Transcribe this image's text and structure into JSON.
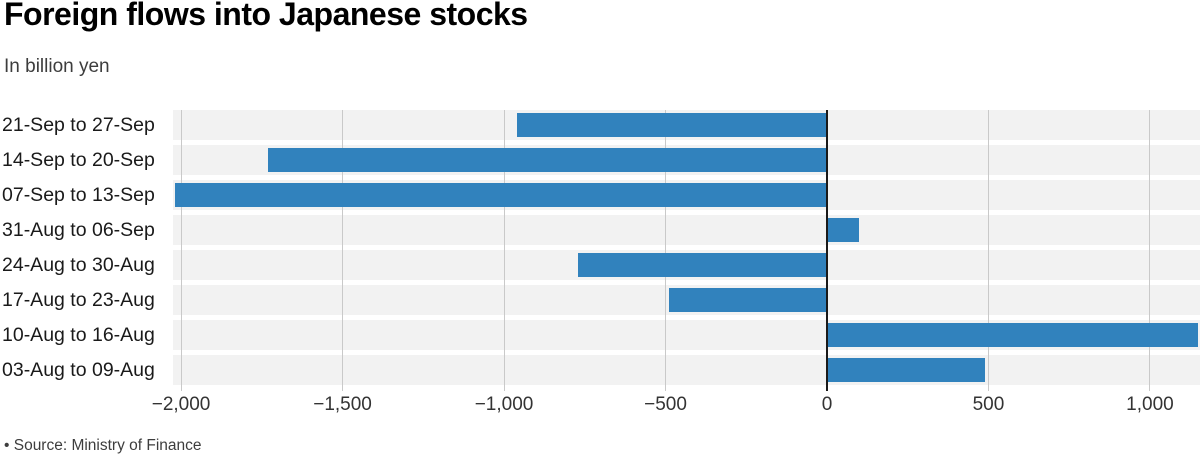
{
  "footer": {
    "source": "• Source: Ministry of Finance"
  },
  "chart_data": {
    "type": "bar",
    "orientation": "horizontal",
    "title": "Foreign flows into Japanese stocks",
    "subtitle": "In billion yen",
    "unit": "billion yen",
    "categories": [
      "21-Sep to 27-Sep",
      "14-Sep to 20-Sep",
      "07-Sep to 13-Sep",
      "31-Aug to 06-Sep",
      "24-Aug to 30-Aug",
      "17-Aug to 23-Aug",
      "10-Aug to 16-Aug",
      "03-Aug to 09-Aug"
    ],
    "values": [
      -960,
      -1730,
      -2020,
      100,
      -770,
      -490,
      1150,
      490
    ],
    "xlabel": "",
    "ylabel": "",
    "xlim": [
      -2025,
      1155
    ],
    "xticks": [
      {
        "value": -2000,
        "label": "−2,000"
      },
      {
        "value": -1500,
        "label": "−1,500"
      },
      {
        "value": -1000,
        "label": "−1,000"
      },
      {
        "value": -500,
        "label": "−500"
      },
      {
        "value": 0,
        "label": "0"
      },
      {
        "value": 500,
        "label": "500"
      },
      {
        "value": 1000,
        "label": "1,000"
      }
    ],
    "grid": "vertical",
    "legend": "none",
    "colors": {
      "bar": "#3182bd",
      "row_band": "#f2f2f2",
      "gridline": "#c9c9c9",
      "zero_line": "#1a1a1a",
      "background": "#ffffff"
    }
  }
}
